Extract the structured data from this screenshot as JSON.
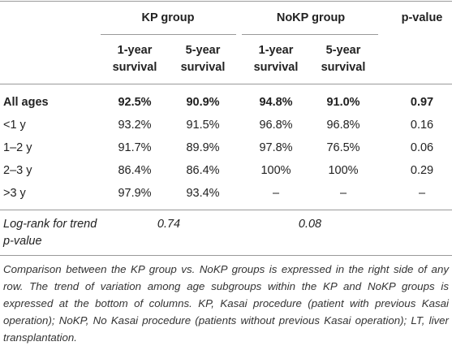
{
  "table": {
    "group_headers": [
      "KP group",
      "NoKP group",
      "p-value"
    ],
    "subheaders": [
      "1-year survival",
      "5-year survival",
      "1-year survival",
      "5-year survival"
    ],
    "rows": [
      [
        "All ages",
        "92.5%",
        "90.9%",
        "94.8%",
        "91.0%",
        "0.97"
      ],
      [
        "<1 y",
        "93.2%",
        "91.5%",
        "96.8%",
        "96.8%",
        "0.16"
      ],
      [
        "1–2 y",
        "91.7%",
        "89.9%",
        "97.8%",
        "76.5%",
        "0.06"
      ],
      [
        "2–3 y",
        "86.4%",
        "86.4%",
        "100%",
        "100%",
        "0.29"
      ],
      [
        ">3 y",
        "97.9%",
        "93.4%",
        "–",
        "–",
        "–"
      ]
    ],
    "trend": {
      "label": "Log-rank for trend p-value",
      "values": [
        "0.74",
        "0.08"
      ]
    },
    "footnote": "Comparison between the KP group vs. NoKP groups is expressed in the right side of any row. The trend of variation among age subgroups within the KP and NoKP groups is expressed at the bottom of columns. KP, Kasai procedure (patient with previous Kasai operation); NoKP, No Kasai procedure (patients without previous Kasai operation); LT, liver transplantation."
  }
}
